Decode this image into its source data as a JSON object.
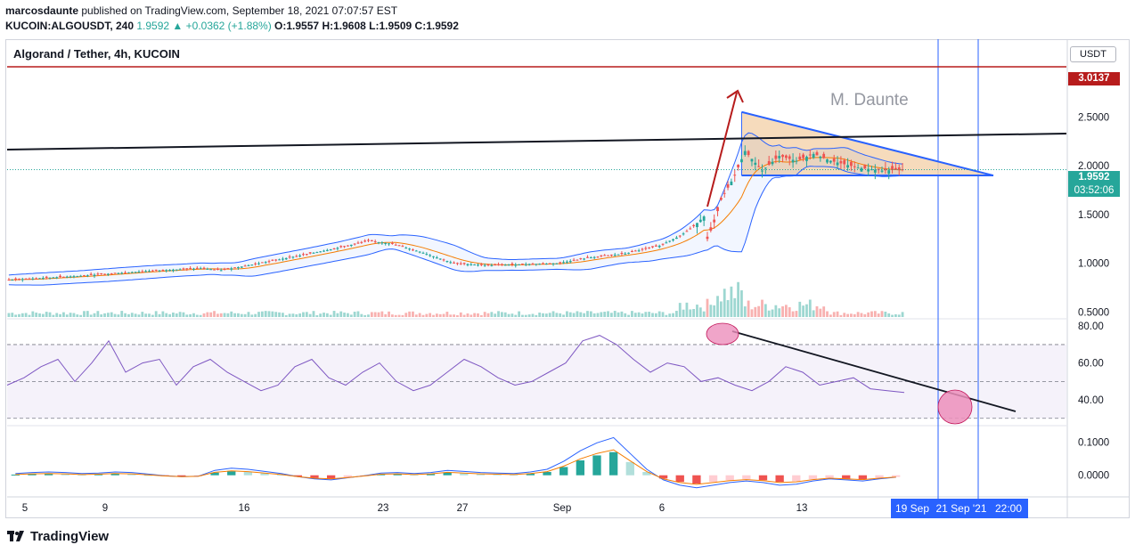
{
  "header": {
    "publisher": "marcosdaunte",
    "published_text": "published on TradingView.com, September 18, 2021 07:07:57 EST",
    "symbol": "KUCOIN:ALGOUSDT, 240",
    "last": "1.9592",
    "change": "▲ +0.0362 (+1.88%)",
    "o": "O:1.9557",
    "h": "H:1.9608",
    "l": "L:1.9509",
    "c": "C:1.9592"
  },
  "chart_title": "Algorand / Tether, 4h, KUCOIN",
  "currency": "USDT",
  "watermark": "M. Daunte",
  "price_badges": {
    "resistance": "3.0137",
    "last_price": "1.9592",
    "countdown": "03:52:06"
  },
  "colors": {
    "up": "#26a69a",
    "down": "#ef5350",
    "resistance": "#b71c1c",
    "trendline": "#131722",
    "bollinger": "#2962ff",
    "ma": "#f57c00",
    "triangle_fill": "#f5d5b0",
    "rsi": "#7e57c2",
    "highlight": "#ec8fbb"
  },
  "time_axis": {
    "labels": [
      "5",
      "9",
      "16",
      "23",
      "27",
      "Sep",
      "6",
      "13"
    ],
    "highlight_labels": [
      "19 Sep",
      "21 Sep '21",
      "22:00"
    ]
  },
  "footer": {
    "brand": "TradingView"
  },
  "chart_data": [
    {
      "type": "candlestick",
      "title": "Algorand / Tether, 4h, KUCOIN",
      "ylabel": "USDT",
      "y_ticks": [
        "2.5000",
        "2.0000",
        "1.5000",
        "1.0000",
        "0.5000"
      ],
      "ylim": [
        0.45,
        3.15
      ],
      "x_ticks": [
        "5",
        "9",
        "16",
        "23",
        "27",
        "Sep",
        "6",
        "13"
      ],
      "close_path": [
        [
          0,
          0.83
        ],
        [
          20,
          0.87
        ],
        [
          40,
          0.92
        ],
        [
          56,
          0.95
        ],
        [
          62,
          0.93
        ],
        [
          70,
          0.98
        ],
        [
          85,
          1.08
        ],
        [
          95,
          1.15
        ],
        [
          105,
          1.23
        ],
        [
          112,
          1.2
        ],
        [
          120,
          1.12
        ],
        [
          130,
          1.0
        ],
        [
          140,
          0.98
        ],
        [
          150,
          0.99
        ],
        [
          160,
          1.0
        ],
        [
          170,
          1.06
        ],
        [
          180,
          1.1
        ],
        [
          190,
          1.18
        ],
        [
          196,
          1.28
        ],
        [
          200,
          1.38
        ],
        [
          203,
          1.48
        ],
        [
          204,
          1.25
        ],
        [
          206,
          1.42
        ],
        [
          208,
          1.65
        ],
        [
          212,
          1.9
        ],
        [
          215,
          2.15
        ],
        [
          220,
          1.95
        ],
        [
          225,
          2.1
        ],
        [
          230,
          2.05
        ],
        [
          235,
          2.12
        ],
        [
          240,
          2.05
        ],
        [
          248,
          1.98
        ],
        [
          255,
          1.95
        ],
        [
          261,
          1.96
        ]
      ],
      "resistance_level": 3.0137,
      "last_price": 1.9592,
      "watermark": "M. Daunte"
    },
    {
      "type": "line",
      "name": "RSI",
      "y_ticks": [
        "80.00",
        "60.00",
        "40.00"
      ],
      "ylim": [
        27,
        83
      ],
      "bands": [
        30,
        50,
        70
      ],
      "values": [
        48,
        52,
        58,
        62,
        50,
        60,
        72,
        55,
        60,
        62,
        48,
        58,
        62,
        55,
        50,
        45,
        48,
        58,
        62,
        52,
        48,
        55,
        60,
        50,
        45,
        48,
        55,
        62,
        58,
        52,
        48,
        50,
        55,
        60,
        72,
        75,
        70,
        62,
        55,
        60,
        58,
        50,
        52,
        48,
        45,
        50,
        58,
        55,
        48,
        50,
        52,
        46,
        45,
        44
      ]
    },
    {
      "type": "bar",
      "name": "MACD",
      "y_ticks": [
        "0.1000",
        "0.0000"
      ],
      "ylim": [
        -0.06,
        0.15
      ],
      "histogram": [
        0.002,
        0.004,
        0.005,
        0.004,
        0.002,
        0.003,
        0.005,
        0.004,
        0.001,
        -0.002,
        -0.004,
        -0.003,
        0.008,
        0.012,
        0.01,
        0.006,
        0.002,
        -0.004,
        -0.008,
        -0.01,
        -0.006,
        -0.002,
        0.003,
        0.004,
        0.002,
        0.004,
        0.008,
        0.006,
        0.004,
        0.003,
        0.002,
        0.005,
        0.01,
        0.025,
        0.045,
        0.06,
        0.07,
        0.04,
        0.01,
        -0.01,
        -0.02,
        -0.025,
        -0.02,
        -0.015,
        -0.012,
        -0.015,
        -0.02,
        -0.018,
        -0.012,
        -0.008,
        -0.01,
        -0.012,
        -0.008,
        -0.005
      ]
    }
  ]
}
